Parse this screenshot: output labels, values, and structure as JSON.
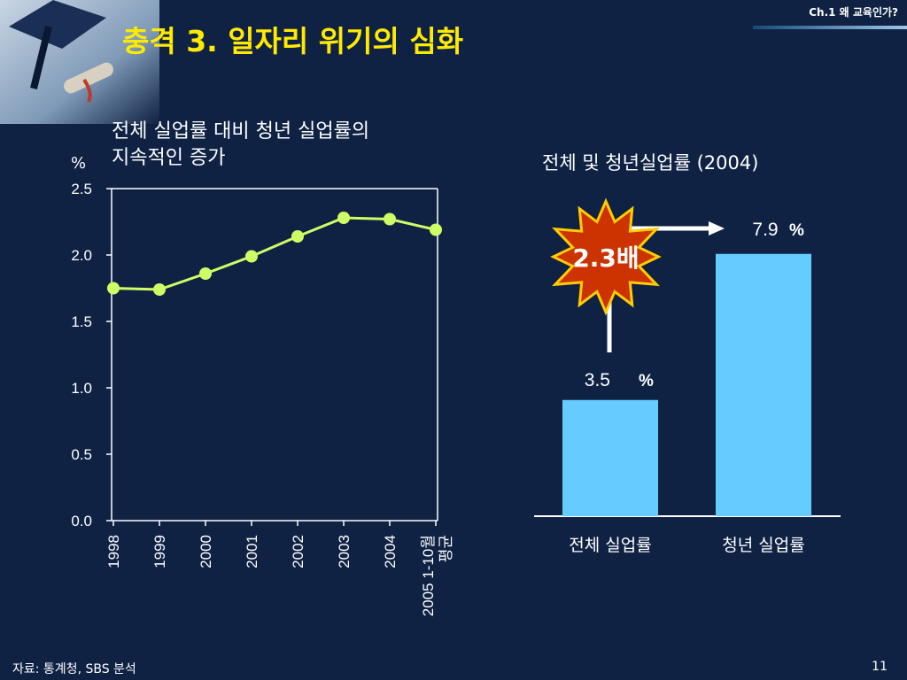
{
  "header": {
    "chapter": "Ch.1 왜 교육인가?",
    "title": "충격 3. 일자리 위기의 심화"
  },
  "line_chart_title_1": "전체 실업률 대비 청년 실업률의",
  "line_chart_title_2": "지속적인 증가",
  "y_unit": "%",
  "bar_chart_title": "전체 및 청년실업률 (2004)",
  "ratio_label": "2.3배",
  "footer": {
    "source": "자료: 통계청, SBS 분석",
    "page": "11"
  },
  "colors": {
    "title": "#ffea00",
    "line_marker": "#ccff66",
    "bar": "#66ccff",
    "burst": "#cc3300",
    "background": "#0f2244"
  },
  "chart_data": [
    {
      "type": "line",
      "title": "전체 실업률 대비 청년 실업률의 지속적인 증가",
      "ylabel": "%",
      "ylim": [
        0,
        2.5
      ],
      "yticks": [
        "0.0",
        "0.5",
        "1.0",
        "1.5",
        "2.0",
        "2.5"
      ],
      "categories": [
        "1998",
        "1999",
        "2000",
        "2001",
        "2002",
        "2003",
        "2004",
        "2005 1-10월 평균"
      ],
      "values": [
        1.75,
        1.74,
        1.86,
        1.99,
        2.14,
        2.28,
        2.27,
        2.19
      ]
    },
    {
      "type": "bar",
      "title": "전체 및 청년실업률 (2004)",
      "categories": [
        "전체 실업률",
        "청년 실업률"
      ],
      "values": [
        3.5,
        7.9
      ],
      "value_labels": [
        "3.5",
        "7.9"
      ],
      "unit": "%",
      "annotation": "2.3배"
    }
  ]
}
